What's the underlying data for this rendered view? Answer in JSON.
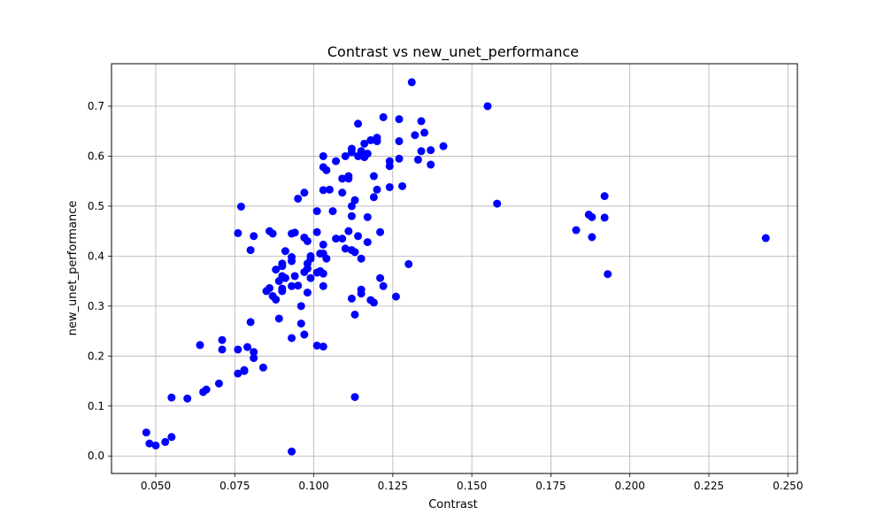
{
  "chart_data": {
    "type": "scatter",
    "title": "Contrast vs new_unet_performance",
    "xlabel": "Contrast",
    "ylabel": "new_unet_performance",
    "xlim": [
      0.036,
      0.253
    ],
    "ylim": [
      -0.035,
      0.785
    ],
    "xticks": [
      0.05,
      0.075,
      0.1,
      0.125,
      0.15,
      0.175,
      0.2,
      0.225,
      0.25
    ],
    "xtick_labels": [
      "0.050",
      "0.075",
      "0.100",
      "0.125",
      "0.150",
      "0.175",
      "0.200",
      "0.225",
      "0.250"
    ],
    "yticks": [
      0.0,
      0.1,
      0.2,
      0.3,
      0.4,
      0.5,
      0.6,
      0.7
    ],
    "ytick_labels": [
      "0.0",
      "0.1",
      "0.2",
      "0.3",
      "0.4",
      "0.5",
      "0.6",
      "0.7"
    ],
    "grid": true,
    "marker_color": "#0000ff",
    "points": [
      [
        0.047,
        0.047
      ],
      [
        0.048,
        0.025
      ],
      [
        0.05,
        0.021
      ],
      [
        0.053,
        0.028
      ],
      [
        0.055,
        0.038
      ],
      [
        0.055,
        0.117
      ],
      [
        0.06,
        0.115
      ],
      [
        0.065,
        0.128
      ],
      [
        0.066,
        0.133
      ],
      [
        0.064,
        0.222
      ],
      [
        0.07,
        0.145
      ],
      [
        0.071,
        0.232
      ],
      [
        0.071,
        0.213
      ],
      [
        0.076,
        0.165
      ],
      [
        0.076,
        0.213
      ],
      [
        0.078,
        0.17
      ],
      [
        0.078,
        0.172
      ],
      [
        0.079,
        0.218
      ],
      [
        0.081,
        0.208
      ],
      [
        0.081,
        0.196
      ],
      [
        0.084,
        0.177
      ],
      [
        0.08,
        0.268
      ],
      [
        0.089,
        0.275
      ],
      [
        0.076,
        0.446
      ],
      [
        0.077,
        0.499
      ],
      [
        0.08,
        0.412
      ],
      [
        0.081,
        0.44
      ],
      [
        0.086,
        0.45
      ],
      [
        0.087,
        0.445
      ],
      [
        0.085,
        0.33
      ],
      [
        0.086,
        0.336
      ],
      [
        0.087,
        0.32
      ],
      [
        0.088,
        0.313
      ],
      [
        0.088,
        0.373
      ],
      [
        0.089,
        0.35
      ],
      [
        0.09,
        0.36
      ],
      [
        0.09,
        0.385
      ],
      [
        0.09,
        0.38
      ],
      [
        0.09,
        0.335
      ],
      [
        0.09,
        0.33
      ],
      [
        0.091,
        0.41
      ],
      [
        0.091,
        0.356
      ],
      [
        0.093,
        0.445
      ],
      [
        0.094,
        0.447
      ],
      [
        0.093,
        0.398
      ],
      [
        0.093,
        0.39
      ],
      [
        0.094,
        0.36
      ],
      [
        0.093,
        0.34
      ],
      [
        0.095,
        0.341
      ],
      [
        0.093,
        0.236
      ],
      [
        0.093,
        0.009
      ],
      [
        0.095,
        0.515
      ],
      [
        0.097,
        0.527
      ],
      [
        0.097,
        0.437
      ],
      [
        0.098,
        0.43
      ],
      [
        0.096,
        0.3
      ],
      [
        0.096,
        0.265
      ],
      [
        0.097,
        0.243
      ],
      [
        0.097,
        0.368
      ],
      [
        0.098,
        0.327
      ],
      [
        0.098,
        0.385
      ],
      [
        0.098,
        0.375
      ],
      [
        0.099,
        0.395
      ],
      [
        0.099,
        0.356
      ],
      [
        0.099,
        0.4
      ],
      [
        0.101,
        0.49
      ],
      [
        0.101,
        0.448
      ],
      [
        0.101,
        0.367
      ],
      [
        0.101,
        0.221
      ],
      [
        0.102,
        0.405
      ],
      [
        0.102,
        0.37
      ],
      [
        0.103,
        0.6
      ],
      [
        0.103,
        0.578
      ],
      [
        0.104,
        0.572
      ],
      [
        0.103,
        0.532
      ],
      [
        0.103,
        0.423
      ],
      [
        0.103,
        0.405
      ],
      [
        0.103,
        0.365
      ],
      [
        0.103,
        0.34
      ],
      [
        0.103,
        0.219
      ],
      [
        0.104,
        0.395
      ],
      [
        0.105,
        0.533
      ],
      [
        0.106,
        0.49
      ],
      [
        0.107,
        0.59
      ],
      [
        0.107,
        0.435
      ],
      [
        0.109,
        0.555
      ],
      [
        0.109,
        0.527
      ],
      [
        0.109,
        0.435
      ],
      [
        0.11,
        0.6
      ],
      [
        0.11,
        0.415
      ],
      [
        0.111,
        0.56
      ],
      [
        0.111,
        0.555
      ],
      [
        0.111,
        0.45
      ],
      [
        0.112,
        0.615
      ],
      [
        0.112,
        0.608
      ],
      [
        0.112,
        0.5
      ],
      [
        0.112,
        0.48
      ],
      [
        0.112,
        0.412
      ],
      [
        0.112,
        0.315
      ],
      [
        0.113,
        0.512
      ],
      [
        0.113,
        0.283
      ],
      [
        0.113,
        0.118
      ],
      [
        0.113,
        0.408
      ],
      [
        0.114,
        0.665
      ],
      [
        0.114,
        0.6
      ],
      [
        0.114,
        0.44
      ],
      [
        0.115,
        0.61
      ],
      [
        0.115,
        0.395
      ],
      [
        0.115,
        0.333
      ],
      [
        0.115,
        0.325
      ],
      [
        0.116,
        0.625
      ],
      [
        0.116,
        0.598
      ],
      [
        0.117,
        0.605
      ],
      [
        0.117,
        0.478
      ],
      [
        0.117,
        0.428
      ],
      [
        0.118,
        0.632
      ],
      [
        0.118,
        0.312
      ],
      [
        0.119,
        0.56
      ],
      [
        0.119,
        0.518
      ],
      [
        0.119,
        0.307
      ],
      [
        0.12,
        0.637
      ],
      [
        0.12,
        0.63
      ],
      [
        0.12,
        0.533
      ],
      [
        0.121,
        0.448
      ],
      [
        0.121,
        0.356
      ],
      [
        0.122,
        0.678
      ],
      [
        0.122,
        0.34
      ],
      [
        0.124,
        0.59
      ],
      [
        0.124,
        0.58
      ],
      [
        0.124,
        0.538
      ],
      [
        0.126,
        0.319
      ],
      [
        0.127,
        0.674
      ],
      [
        0.127,
        0.63
      ],
      [
        0.127,
        0.595
      ],
      [
        0.128,
        0.54
      ],
      [
        0.13,
        0.384
      ],
      [
        0.131,
        0.748
      ],
      [
        0.132,
        0.642
      ],
      [
        0.133,
        0.593
      ],
      [
        0.134,
        0.67
      ],
      [
        0.134,
        0.61
      ],
      [
        0.135,
        0.647
      ],
      [
        0.137,
        0.612
      ],
      [
        0.137,
        0.583
      ],
      [
        0.141,
        0.62
      ],
      [
        0.155,
        0.7
      ],
      [
        0.158,
        0.505
      ],
      [
        0.183,
        0.452
      ],
      [
        0.187,
        0.483
      ],
      [
        0.188,
        0.478
      ],
      [
        0.188,
        0.438
      ],
      [
        0.192,
        0.52
      ],
      [
        0.192,
        0.477
      ],
      [
        0.193,
        0.364
      ],
      [
        0.243,
        0.436
      ]
    ]
  }
}
